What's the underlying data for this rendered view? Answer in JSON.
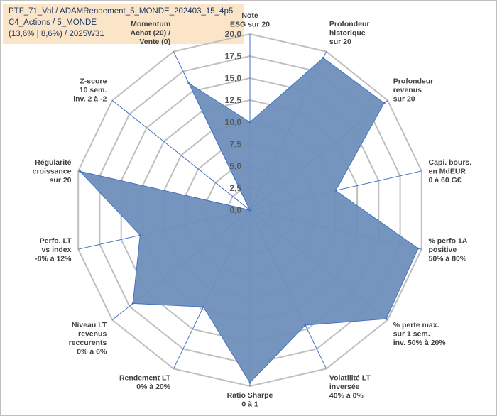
{
  "header": {
    "line1": "PTF_71_Val / ADAMRendement_5_MONDE_202403_15_4p5",
    "line2": "C4_Actions / 5_MONDE",
    "line3": "(13,6% | 8,6%) / 2025W31"
  },
  "chart_data": {
    "type": "radar",
    "rmin": 0,
    "rmax": 20,
    "tick_labels": [
      "0,0",
      "2,5",
      "5,0",
      "7,5",
      "10,0",
      "12,5",
      "15,0",
      "17,5",
      "20,0"
    ],
    "grid": true,
    "fill_color": "#6f8fbb",
    "line_color": "#4472c4",
    "grid_color": "#bfbfbf",
    "axes": [
      {
        "label": [
          "Note",
          "ESG sur 20"
        ],
        "value": 10.0
      },
      {
        "label": [
          "Profondeur",
          "historique",
          "sur 20"
        ],
        "value": 19.2
      },
      {
        "label": [
          "Profondeur",
          "revenus",
          "sur 20"
        ],
        "value": 19.5
      },
      {
        "label": [
          "Capi. bours.",
          "en MdEUR",
          "0 à 60 G€"
        ],
        "value": 10.0
      },
      {
        "label": [
          "% perfo 1A",
          "positive",
          "50% à 80%"
        ],
        "value": 19.6
      },
      {
        "label": [
          "% perte max.",
          "sur 1 sem.",
          "inv. 50% à 20%"
        ],
        "value": 19.8
      },
      {
        "label": [
          "Volatilité LT",
          "inversée",
          "40% à 0%"
        ],
        "value": 14.5
      },
      {
        "label": [
          "Ratio Sharpe",
          "0 à 1"
        ],
        "value": 19.6
      },
      {
        "label": [
          "Rendement LT",
          "0% à 20%"
        ],
        "value": 12.2
      },
      {
        "label": [
          "Niveau LT",
          "revenus",
          "reccurents",
          "0% à 6%"
        ],
        "value": 17.0
      },
      {
        "label": [
          "Perfo. LT",
          "vs index",
          "-8% à 12%"
        ],
        "value": 12.8
      },
      {
        "label": [
          "Régularité",
          "croissance",
          "sur 20"
        ],
        "value": 19.8
      },
      {
        "label": [
          "Z-score",
          "10 sem.",
          "inv. 2 à -2"
        ],
        "value": 0.0
      },
      {
        "label": [
          "Momentum",
          "Achat (20) /",
          "Vente (0)"
        ],
        "value": 16.0
      }
    ]
  }
}
